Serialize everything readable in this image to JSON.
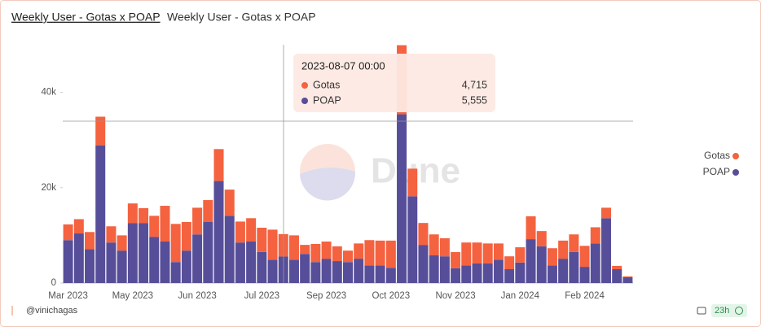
{
  "header": {
    "title": "Weekly User - Gotas x POAP",
    "subtitle": "Weekly User - Gotas x POAP"
  },
  "chart_data": {
    "type": "stacked_bar",
    "categories": [
      "Mar 2023",
      null,
      null,
      null,
      null,
      null,
      "May 2023",
      null,
      null,
      null,
      null,
      null,
      "Jun 2023",
      null,
      null,
      null,
      null,
      null,
      "Jul 2023",
      null,
      null,
      null,
      null,
      null,
      "Sep 2023",
      null,
      null,
      null,
      null,
      null,
      "Oct 2023",
      null,
      null,
      null,
      null,
      null,
      "Nov 2023",
      null,
      null,
      null,
      null,
      null,
      "Jan 2024",
      null,
      null,
      null,
      null,
      null,
      "Feb 2024",
      null,
      null,
      null,
      null
    ],
    "series": [
      {
        "name": "POAP",
        "color": "#574e99",
        "values": [
          9000,
          10400,
          7100,
          28900,
          8500,
          6800,
          12600,
          12600,
          9700,
          8700,
          4400,
          6800,
          10200,
          12800,
          21400,
          14100,
          8500,
          8700,
          6500,
          4900,
          5555,
          4900,
          6100,
          4400,
          5100,
          4600,
          4400,
          5100,
          3700,
          3700,
          3200,
          35400,
          18200,
          8000,
          5800,
          5600,
          3100,
          3700,
          4100,
          4100,
          4900,
          2900,
          4300,
          9200,
          7700,
          3700,
          5100,
          6500,
          3400,
          8300,
          13600,
          2900,
          1200
        ]
      },
      {
        "name": "Gotas",
        "color": "#f4623f",
        "values": [
          3300,
          3000,
          3600,
          6000,
          3400,
          3200,
          4100,
          3100,
          4400,
          7500,
          8000,
          6000,
          5600,
          4600,
          6700,
          5500,
          4400,
          4900,
          5100,
          6300,
          4715,
          5100,
          1900,
          3800,
          3600,
          3100,
          2400,
          3200,
          5300,
          5200,
          5700,
          14500,
          5800,
          4600,
          4400,
          3800,
          3400,
          4800,
          4400,
          4200,
          3400,
          2700,
          3200,
          4800,
          3200,
          3600,
          3800,
          3700,
          4400,
          3400,
          2200,
          700,
          200
        ]
      }
    ],
    "ylim": [
      0,
      50000
    ],
    "yticks": [
      {
        "value": 0,
        "label": "0"
      },
      {
        "value": 20000,
        "label": "20k"
      },
      {
        "value": 40000,
        "label": "40k"
      }
    ],
    "legend": "right",
    "watermark": "Dune",
    "tooltip": {
      "title": "2023-08-07 00:00",
      "rows": [
        {
          "name": "Gotas",
          "color": "#f4623f",
          "value": 4715,
          "label": "4,715"
        },
        {
          "name": "POAP",
          "color": "#574e99",
          "value": 5555,
          "label": "5,555"
        }
      ]
    }
  },
  "footer": {
    "author": "@vinichagas",
    "age": "23h"
  }
}
